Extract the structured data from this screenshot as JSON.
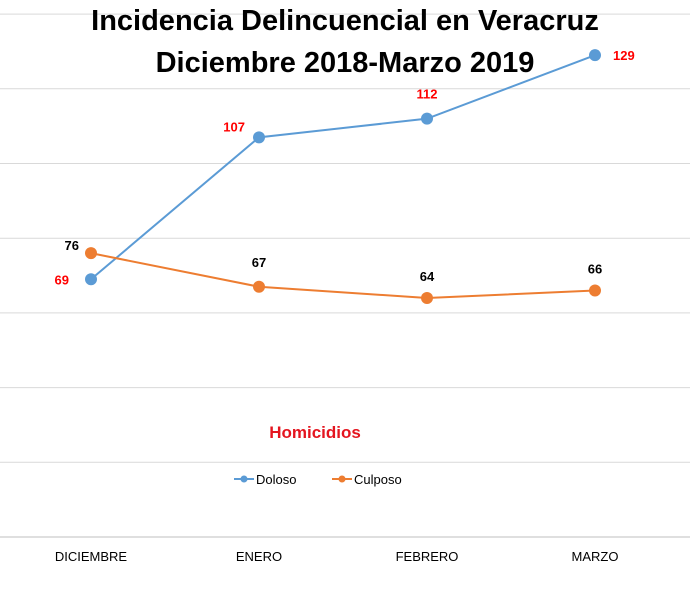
{
  "colors": {
    "doloso": "#5b9bd5",
    "culposo": "#ed7d31",
    "doloso_label": "#ff0000",
    "culposo_label": "#000000",
    "subtitle": "#e4151f",
    "grid": "#d9d9d9",
    "background": "#ffffff"
  },
  "chart_data": {
    "type": "line",
    "title_lines": [
      "Incidencia Delincuencial en Veracruz",
      "Diciembre 2018-Marzo 2019"
    ],
    "subtitle": "Homicidios",
    "categories": [
      "DICIEMBRE",
      "ENERO",
      "FEBRERO",
      "MARZO"
    ],
    "series": [
      {
        "name": "Doloso",
        "values": [
          69,
          107,
          112,
          129
        ]
      },
      {
        "name": "Culposo",
        "values": [
          76,
          67,
          64,
          66
        ]
      }
    ],
    "ylim": [
      0,
      140
    ],
    "grid": true,
    "legend_position": "bottom"
  }
}
